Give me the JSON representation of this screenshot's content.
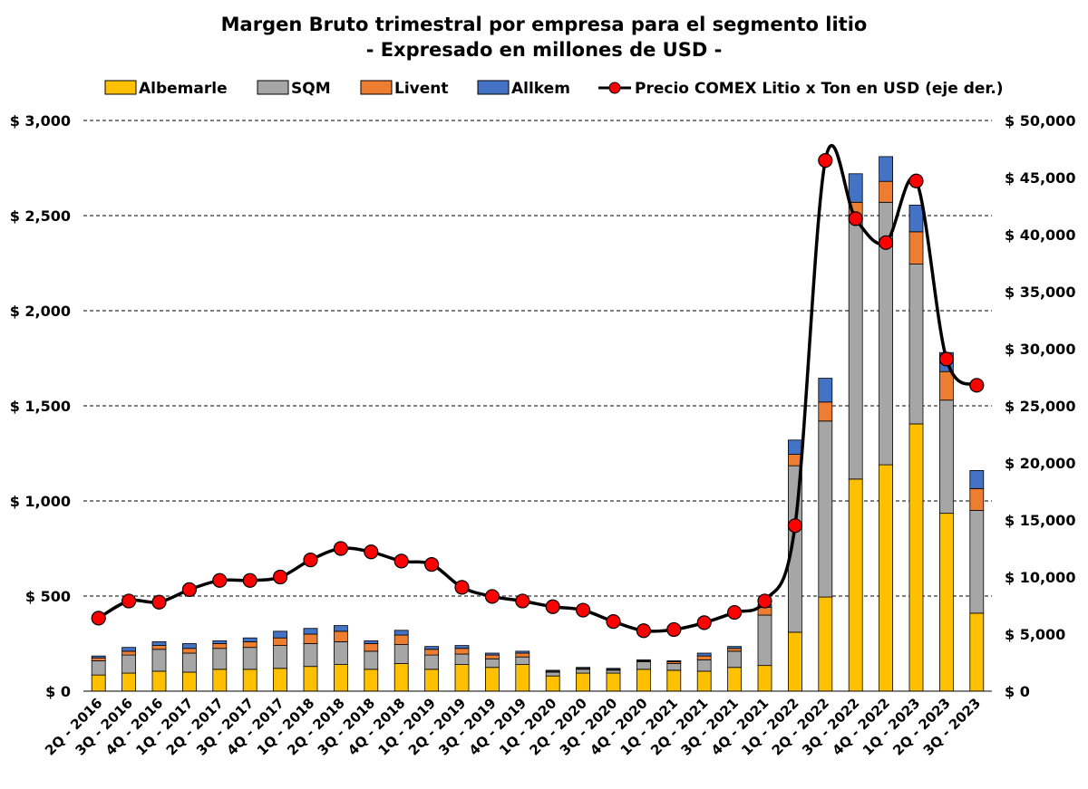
{
  "chart_data": {
    "type": "bar",
    "stacked": true,
    "title": "Margen Bruto trimestral por empresa para el segmento litio",
    "subtitle": "- Expresado en millones de USD -",
    "xlabel": "",
    "ylabel": "",
    "ylim": [
      0,
      3000
    ],
    "y2lim": [
      0,
      50000
    ],
    "yticks": [
      "$ 0",
      "$ 500",
      "$ 1,000",
      "$ 1,500",
      "$ 2,000",
      "$ 2,500",
      "$ 3,000"
    ],
    "y2ticks": [
      "$ 0",
      "$ 5,000",
      "$ 10,000",
      "$ 15,000",
      "$ 20,000",
      "$ 25,000",
      "$ 30,000",
      "$ 35,000",
      "$ 40,000",
      "$ 45,000",
      "$ 50,000"
    ],
    "grid": true,
    "legend_position": "top",
    "categories": [
      "2Q - 2016",
      "3Q - 2016",
      "4Q - 2016",
      "1Q - 2017",
      "2Q - 2017",
      "3Q - 2017",
      "4Q - 2017",
      "1Q - 2018",
      "2Q - 2018",
      "3Q - 2018",
      "4Q - 2018",
      "1Q - 2019",
      "2Q - 2019",
      "3Q - 2019",
      "4Q - 2019",
      "1Q - 2020",
      "2Q - 2020",
      "3Q - 2020",
      "4Q - 2020",
      "1Q - 2021",
      "2Q - 2021",
      "3Q - 2021",
      "4Q - 2021",
      "1Q - 2022",
      "2Q - 2022",
      "3Q - 2022",
      "4Q - 2022",
      "1Q - 2023",
      "2Q - 2023",
      "3Q - 2023"
    ],
    "series": [
      {
        "name": "Albemarle",
        "color": "#FFC000",
        "values": [
          85,
          95,
          105,
          100,
          115,
          115,
          120,
          130,
          140,
          115,
          145,
          115,
          140,
          125,
          140,
          80,
          95,
          95,
          115,
          110,
          105,
          125,
          135,
          310,
          495,
          1115,
          1190,
          1405,
          935,
          410
        ]
      },
      {
        "name": "SQM",
        "color": "#A6A6A6",
        "values": [
          75,
          95,
          115,
          100,
          110,
          115,
          120,
          120,
          120,
          95,
          100,
          75,
          55,
          45,
          40,
          20,
          20,
          15,
          40,
          35,
          60,
          85,
          265,
          875,
          925,
          1365,
          1380,
          840,
          595,
          540
        ]
      },
      {
        "name": "Livent",
        "color": "#ED7D31",
        "values": [
          15,
          20,
          20,
          25,
          25,
          30,
          40,
          50,
          55,
          40,
          50,
          30,
          30,
          20,
          20,
          5,
          5,
          5,
          5,
          10,
          20,
          15,
          40,
          60,
          100,
          90,
          110,
          170,
          150,
          115
        ]
      },
      {
        "name": "Allkem",
        "color": "#4472C4",
        "values": [
          10,
          20,
          20,
          25,
          15,
          20,
          35,
          30,
          30,
          15,
          25,
          15,
          15,
          10,
          10,
          5,
          5,
          5,
          5,
          5,
          15,
          10,
          15,
          75,
          125,
          150,
          130,
          140,
          100,
          95
        ]
      }
    ],
    "line_series": {
      "name": "Precio COMEX Litio x Ton en USD (eje der.)",
      "color": "#000000",
      "marker_color": "#FF0000",
      "axis": "right",
      "values": [
        6400,
        7900,
        7800,
        8900,
        9700,
        9700,
        10000,
        11500,
        12500,
        12200,
        11400,
        11100,
        9100,
        8300,
        7900,
        7400,
        7100,
        6100,
        5300,
        5400,
        6000,
        6900,
        7900,
        14500,
        46500,
        41400,
        39300,
        44700,
        29100,
        26800
      ]
    }
  }
}
